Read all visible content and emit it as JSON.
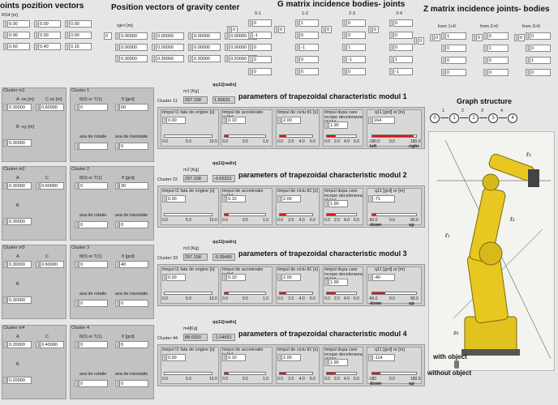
{
  "headers": {
    "joints_position_vectors": "oints pozition vectors",
    "position_vectors_gravity": "Position vectors of gravity center",
    "g_matrix": "G matrix incidence bodies- joints",
    "z_matrix": "Z  matrix incidence joints- bodies",
    "graph_structure": "Graph structure"
  },
  "joints": {
    "label": "RS4 [m]",
    "rows": [
      [
        "0.00",
        "0.00",
        "0.00"
      ],
      [
        "0.00",
        "0.00",
        "0.00"
      ],
      [
        "0.60",
        "0.40",
        "0.15"
      ]
    ]
  },
  "gravity": {
    "label": "rgi>i [m]",
    "index": "0",
    "rows": [
      [
        "0.00000",
        "0.00000",
        "0.00000",
        "0.00000"
      ],
      [
        "0.00000",
        "0.00000",
        "0.00000",
        "0.00000"
      ],
      [
        "0.30000",
        "0.30000",
        "0.30000",
        "0.20000"
      ]
    ]
  },
  "g_matrix": {
    "index": "0",
    "cols": [
      "0-1",
      "1-2",
      "2-3",
      "3-4"
    ],
    "values": [
      [
        "0",
        "1",
        "0",
        "0"
      ],
      [
        "-1",
        "0",
        "0",
        "0"
      ],
      [
        "0",
        "-1",
        "1",
        "0"
      ],
      [
        "0",
        "0",
        "-1",
        "1"
      ],
      [
        "0",
        "0",
        "0",
        "-1"
      ]
    ]
  },
  "z_matrix": {
    "index": "0",
    "cols": [
      "from 1>0",
      "from 2>0",
      "from 3>0"
    ],
    "values": [
      [
        "1",
        "0",
        "0"
      ],
      [
        "0",
        "1",
        "0"
      ],
      [
        "0",
        "0",
        "1"
      ],
      [
        "0",
        "0",
        "0"
      ]
    ]
  },
  "graph": {
    "nodes": [
      "0",
      "1",
      "2",
      "3",
      "4"
    ],
    "edges": [
      "1",
      "2",
      "3",
      "4"
    ]
  },
  "common": {
    "timp_origine": "timpul t1 fata de origine [s]",
    "timp_accel": "timpul de acceleratie ta1[s]",
    "timp_ciclu": "timpul de ciclu tt1 [s]",
    "timp_decel": "timpul dupa care incepe decelerarea t3'1[s]",
    "a_rot": "axa de rotatie",
    "a_trans": "axa de translatie",
    "theta_label": "θ(0) or T(1)",
    "deg_label": "θ [grd]",
    "a_label": "A",
    "c_label": "C",
    "b_label": "B",
    "m_unit": "[Kg]",
    "qq_unit": "qq11[rad/s]",
    "q_unit": "q11 [grd] or [m]"
  },
  "clusters": [
    {
      "cm_title": "Cluster m1",
      "c_title": "Cluster 1",
      "cc_title": "Cluster 11",
      "a_label": "A -ox [m]",
      "c_label": "C oz [m]",
      "b_label": "B -oy [m]",
      "a": "0.30000",
      "c": "0.60000",
      "b": "0.30000",
      "theta": "0",
      "deg": "60",
      "rot": "",
      "trans": "0",
      "m_label": "m1 [Kg]",
      "m": "297.108",
      "qq": "1.50631",
      "title": "parameters of trapezoidal characteristic modul 1",
      "t1": "0.00",
      "ta": "0.10",
      "tt": "2.00",
      "t3": "1.90",
      "q": "164",
      "q_ticks": [
        "-180.0",
        "0.0",
        "180.0"
      ],
      "q_left": "left",
      "q_right": "right",
      "q_fill": 0.95,
      "ta_fill": 0.1,
      "tt_fill": 0.2,
      "t3_fill": 0.3
    },
    {
      "cm_title": "Cluster m2",
      "c_title": "Cluster 2",
      "cc_title": "Cluster 22",
      "a_label": "A",
      "c_label": "C",
      "b_label": "B",
      "a": "0.30000",
      "c": "0.60000",
      "b": "0.30000",
      "theta": "0",
      "deg": "30",
      "rot": "0",
      "trans": "0",
      "m_label": "m2 [Kg]",
      "m": "297.108",
      "qq": "-0.65321",
      "title": "parameters of trapezoidal characteristic modul 2",
      "t1": "0.00",
      "ta": "0.10",
      "tt": "2.00",
      "t3": "1.90",
      "q": "-71",
      "q_ticks": [
        "-90.0",
        "0.0",
        "90.0"
      ],
      "q_left": "down",
      "q_right": "up",
      "q_fill": 0.1,
      "ta_fill": 0.1,
      "tt_fill": 0.2,
      "t3_fill": 0.3
    },
    {
      "cm_title": "Cluster m3",
      "c_title": "Cluster 3",
      "cc_title": "Cluster 33",
      "a_label": "A",
      "c_label": "C",
      "b_label": "B",
      "a": "0.30000",
      "c": "0.60000",
      "b": "0.30000",
      "theta": "0",
      "deg": "40",
      "rot": "0",
      "trans": "0",
      "m_label": "m3 [Kg]",
      "m": "297.108",
      "qq": "-0.35490",
      "title": "parameters of trapezoidal characteristic modul 3",
      "t1": "0.00",
      "ta": "0.10",
      "tt": "2.00",
      "t3": "1.90",
      "q": "-40",
      "q_ticks": [
        "-90.0",
        "0.0",
        "90.0"
      ],
      "q_left": "down",
      "q_right": "up",
      "q_fill": 0.3,
      "ta_fill": 0.1,
      "tt_fill": 0.2,
      "t3_fill": 0.3
    },
    {
      "cm_title": "Cluster m4",
      "c_title": "Cluster 4",
      "cc_title": "Cluster 44",
      "a_label": "A",
      "c_label": "C",
      "b_label": "B",
      "a": "0.20000",
      "c": "0.40000",
      "b": "0.20000",
      "theta": "0",
      "deg": "0",
      "rot": "0",
      "trans": "0",
      "m_label": "m4[Kg]",
      "m": "88.0320",
      "qq": "-1.04651",
      "title": "parameters of trapezoidal characteristic modul 4",
      "t1": "0.00",
      "ta": "0.10",
      "tt": "2.00",
      "t3": "1.90",
      "q": "-114",
      "q_ticks": [
        "-180",
        "0.0",
        "180.0"
      ],
      "q_left": "down",
      "q_right": "up",
      "q_fill": 0.18,
      "ta_fill": 0.1,
      "tt_fill": 0.2,
      "t3_fill": 0.3
    }
  ],
  "slider_ticks": {
    "t1": [
      "0.0",
      "5.0",
      "10.0"
    ],
    "ta": [
      "0.0",
      "0.5",
      "1.0"
    ],
    "tt": [
      "0.0",
      "2.0",
      "4.0",
      "6.0"
    ],
    "t3": [
      "0.0",
      "2.0",
      "4.0",
      "6.0"
    ]
  },
  "robot": {
    "with_object": "with object",
    "without_object": "without object"
  },
  "colors": {
    "accent": "#e81010",
    "robot": "#e8c820",
    "panel": "#cdcdcd"
  }
}
